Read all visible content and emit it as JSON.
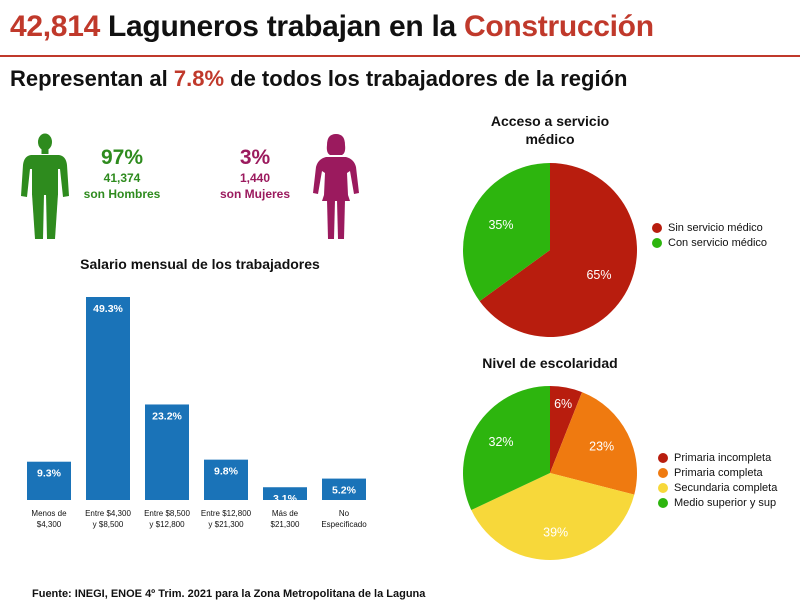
{
  "header": {
    "count": "42,814",
    "title_mid": "Laguneros trabajan en la",
    "title_sector": "Construcción",
    "subtitle_pre": "Representan al",
    "subtitle_pct": "7.8%",
    "subtitle_post": "de todos los trabajadores de la región"
  },
  "gender": {
    "men": {
      "pct": "97%",
      "count": "41,374",
      "label": "son Hombres"
    },
    "women": {
      "pct": "3%",
      "count": "1,440",
      "label": "son Mujeres"
    }
  },
  "colors": {
    "accent_red": "#c0392b",
    "men_green": "#2e8b1e",
    "women_purple": "#9b1a5e",
    "bar_blue": "#1a73b8",
    "pie_dark_red": "#b81d0e",
    "pie_green": "#2db50e",
    "pie_orange": "#ef7a10",
    "pie_yellow": "#f7d83a"
  },
  "chart_data": [
    {
      "type": "bar",
      "title": "Salario mensual de los trabajadores",
      "categories": [
        [
          "Menos de",
          "$4,300"
        ],
        [
          "Entre $4,300",
          "y $8,500"
        ],
        [
          "Entre $8,500",
          "y $12,800"
        ],
        [
          "Entre $12,800",
          "y $21,300"
        ],
        [
          "Más de",
          "$21,300"
        ],
        [
          "No",
          "Especificado"
        ]
      ],
      "values": [
        9.3,
        49.3,
        23.2,
        9.8,
        3.1,
        5.2
      ],
      "value_labels": [
        "9.3%",
        "49.3%",
        "23.2%",
        "9.8%",
        "3.1%",
        "5.2%"
      ],
      "ylim": [
        0,
        49.3
      ],
      "color": "#1a73b8"
    },
    {
      "type": "pie",
      "title": "Acceso a servicio médico",
      "title_lines": [
        "Acceso a servicio",
        "médico"
      ],
      "labels": [
        "Sin servicio médico",
        "Con servicio médico"
      ],
      "values": [
        65,
        35
      ],
      "value_labels": [
        "65%",
        "35%"
      ],
      "colors": [
        "#b81d0e",
        "#2db50e"
      ],
      "legend": "right"
    },
    {
      "type": "pie",
      "title": "Nivel de escolaridad",
      "title_lines": [
        "Nivel de escolaridad"
      ],
      "labels": [
        "Primaria incompleta",
        "Primaria completa",
        "Secundaria completa",
        "Medio superior y sup"
      ],
      "values": [
        6,
        23,
        39,
        32
      ],
      "value_labels": [
        "6%",
        "23%",
        "39%",
        "32%"
      ],
      "colors": [
        "#b81d0e",
        "#ef7a10",
        "#f7d83a",
        "#2db50e"
      ],
      "legend": "right"
    }
  ],
  "source": "Fuente: INEGI, ENOE 4º Trim. 2021 para la Zona Metropolitana de la Laguna"
}
